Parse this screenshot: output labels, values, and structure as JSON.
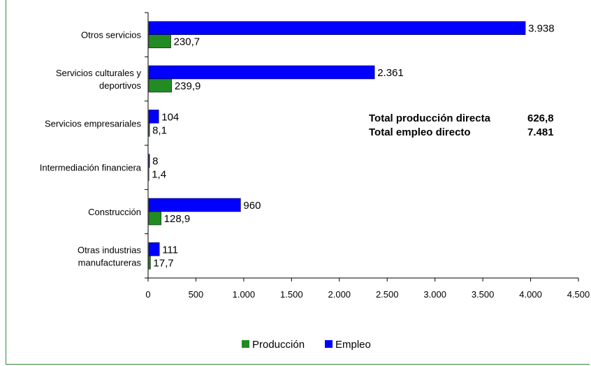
{
  "chart_data": {
    "type": "bar",
    "orientation": "horizontal",
    "categories": [
      [
        "Otros servicios"
      ],
      [
        "Servicios culturales y",
        "deportivos"
      ],
      [
        "Servicios empresariales"
      ],
      [
        "Intermediación financiera"
      ],
      [
        "Construcción"
      ],
      [
        "Otras industrias",
        "manufactureras"
      ]
    ],
    "series": [
      {
        "name": "Empleo",
        "color": "#0000ff",
        "values": [
          3938,
          2361,
          104,
          8,
          960,
          111
        ],
        "labels": [
          "3.938",
          "2.361",
          "104",
          "8",
          "960",
          "111"
        ]
      },
      {
        "name": "Producción",
        "color": "#228b22",
        "values": [
          230.7,
          239.9,
          8.1,
          1.4,
          128.9,
          17.7
        ],
        "labels": [
          "230,7",
          "239,9",
          "8,1",
          "1,4",
          "128,9",
          "17,7"
        ]
      }
    ],
    "xlim": [
      0,
      4500
    ],
    "xticks": [
      "0",
      "500",
      "1.000",
      "1.500",
      "2.000",
      "2.500",
      "3.000",
      "3.500",
      "4.000",
      "4.500"
    ],
    "legend": {
      "position": "bottom",
      "order": [
        "Producción",
        "Empleo"
      ]
    },
    "annotations": [
      {
        "label": "Total producción directa",
        "value": "626,8"
      },
      {
        "label": "Total empleo directo",
        "value": "7.481"
      }
    ]
  }
}
